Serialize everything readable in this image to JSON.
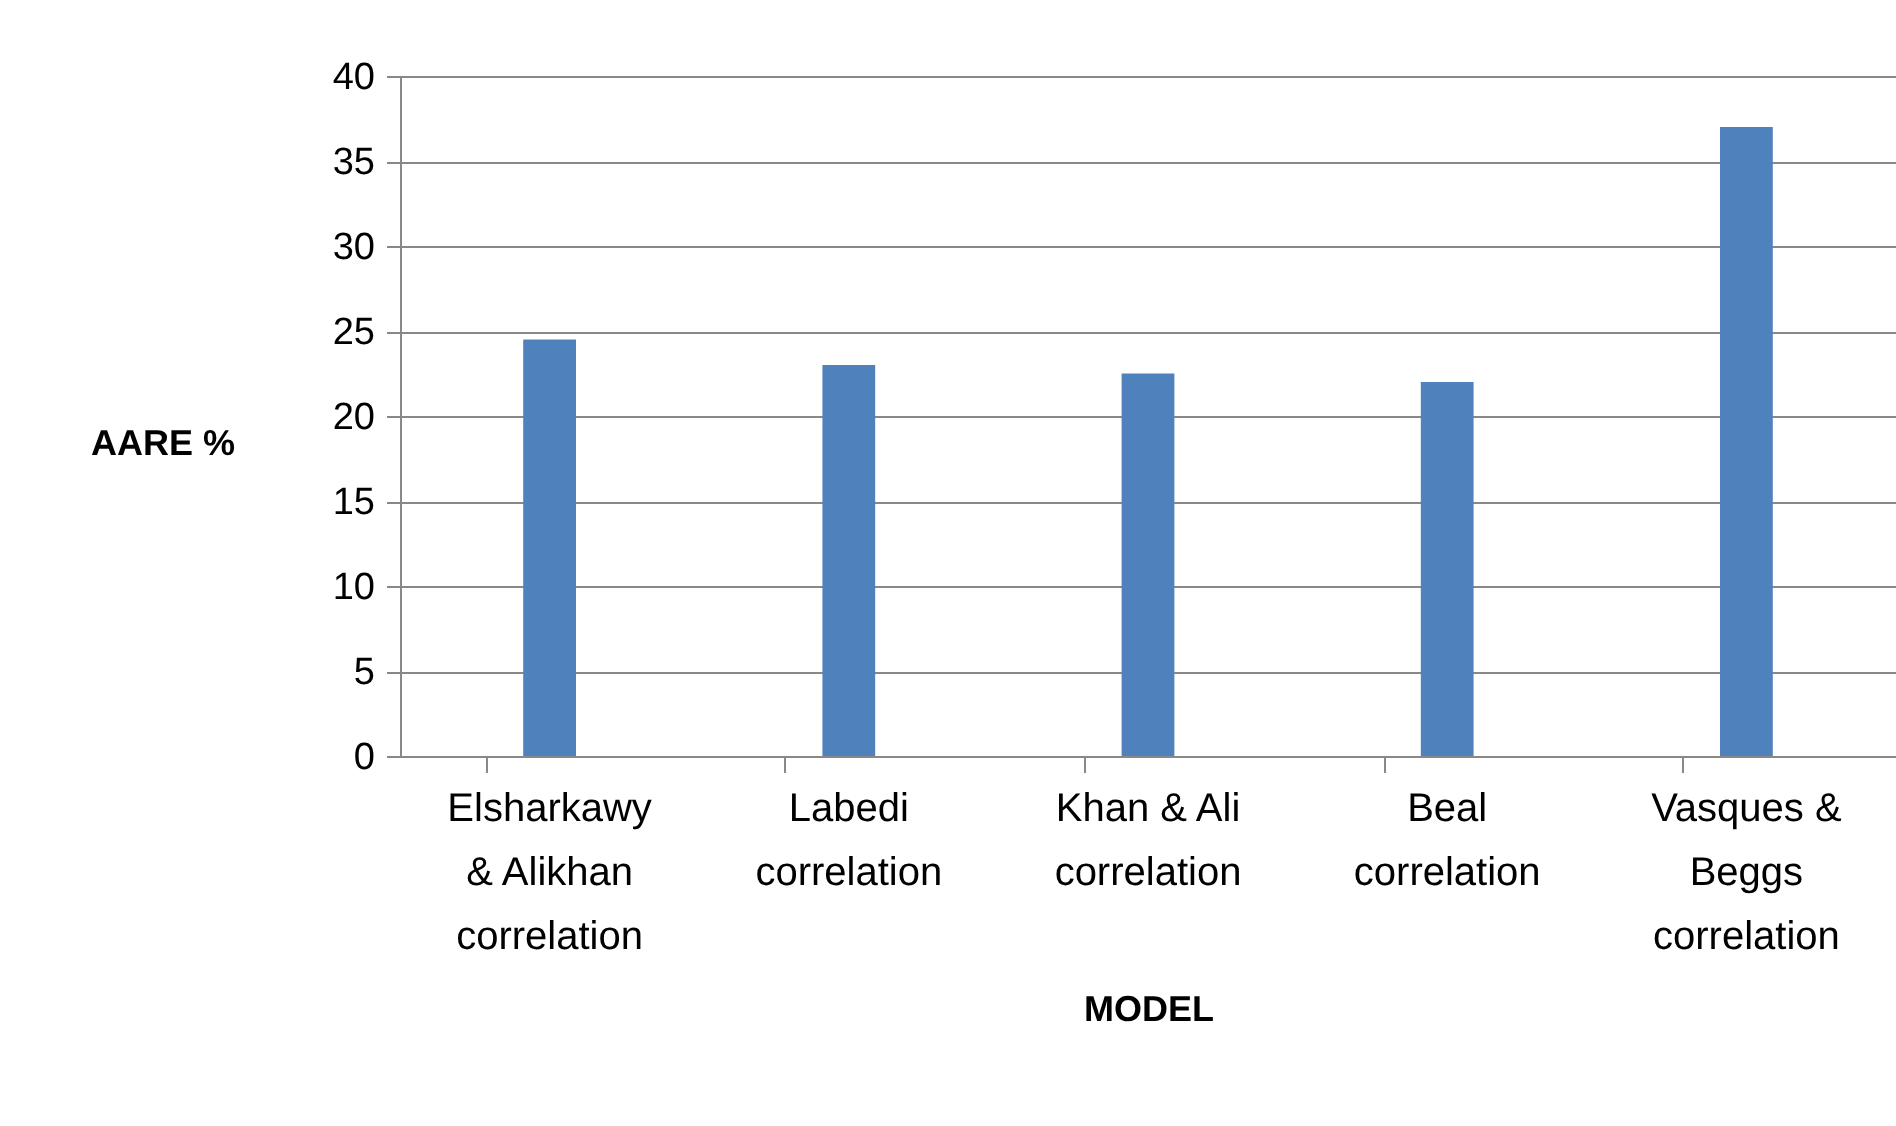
{
  "chart_data": {
    "type": "bar",
    "xlabel": "MODEL",
    "ylabel": "AARE %",
    "categories": [
      "Elsharkawy & Alikhan correlation",
      "Labedi correlation",
      "Khan & Ali correlation",
      "Beal correlation",
      "Vasques & Beggs correlation"
    ],
    "values": [
      24.5,
      23,
      22.5,
      22,
      37
    ],
    "color": "#4f81bd",
    "ylim": [
      0,
      40
    ],
    "yticks": [
      0,
      5,
      10,
      15,
      20,
      25,
      30,
      35,
      40
    ],
    "grid": "y"
  }
}
